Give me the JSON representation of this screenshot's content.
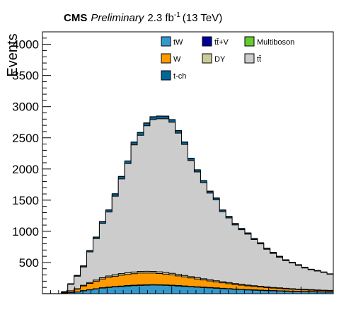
{
  "figure": {
    "title_cms": "CMS",
    "title_prelim": "Preliminary",
    "title_lumi": "2.3 fb",
    "title_lumi_exp": "-1",
    "title_energy": "(13 TeV)"
  },
  "chart_data": {
    "type": "area",
    "stacked": true,
    "title": "CMS Preliminary 2.3 fb-1 (13 TeV)",
    "xlabel": "",
    "ylabel": "Events",
    "ylim": [
      0,
      4200
    ],
    "yticks": [
      500,
      1000,
      1500,
      2000,
      2500,
      3000,
      3500,
      4000
    ],
    "ytick_labels": [
      "500",
      "1000",
      "1500",
      "2000",
      "2500",
      "3000",
      "3500",
      "4000"
    ],
    "grid": false,
    "legend_position": "top-right",
    "legend": [
      {
        "label": "tW",
        "color": "#3399cc"
      },
      {
        "label": "tt̄+V",
        "color": "#000099"
      },
      {
        "label": "Multiboson",
        "color": "#66cc33"
      },
      {
        "label": "W",
        "color": "#ff9900"
      },
      {
        "label": "DY",
        "color": "#cccc99"
      },
      {
        "label": "tt̄",
        "color": "#cccccc"
      },
      {
        "label": "t-ch",
        "color": "#006699"
      }
    ],
    "bins": 46,
    "series": [
      {
        "name": "tW",
        "color": "#3399cc",
        "values": [
          0,
          0,
          0,
          5,
          15,
          25,
          45,
          60,
          75,
          90,
          100,
          108,
          115,
          122,
          128,
          132,
          135,
          137,
          136,
          133,
          128,
          122,
          116,
          110,
          104,
          98,
          92,
          86,
          80,
          75,
          70,
          65,
          60,
          56,
          52,
          48,
          45,
          42,
          39,
          36,
          34,
          31,
          29,
          27,
          25,
          24
        ]
      },
      {
        "name": "tt̄+V",
        "color": "#000099",
        "values": [
          0,
          0,
          0,
          0,
          1,
          1,
          2,
          2,
          3,
          3,
          4,
          4,
          4,
          5,
          5,
          5,
          5,
          5,
          5,
          5,
          5,
          5,
          5,
          4,
          4,
          4,
          4,
          4,
          4,
          3,
          3,
          3,
          3,
          3,
          3,
          3,
          2,
          2,
          2,
          2,
          2,
          2,
          2,
          2,
          2,
          2
        ]
      },
      {
        "name": "Multiboson",
        "color": "#66cc33",
        "values": [
          0,
          0,
          0,
          0,
          1,
          1,
          1,
          2,
          2,
          2,
          3,
          3,
          3,
          3,
          3,
          3,
          3,
          3,
          3,
          3,
          3,
          3,
          3,
          3,
          3,
          3,
          3,
          3,
          3,
          3,
          2,
          2,
          2,
          2,
          2,
          2,
          2,
          2,
          2,
          2,
          2,
          2,
          2,
          2,
          2,
          2
        ]
      },
      {
        "name": "W",
        "color": "#ff9900",
        "values": [
          0,
          0,
          0,
          10,
          25,
          45,
          75,
          100,
          120,
          140,
          155,
          165,
          175,
          180,
          185,
          190,
          188,
          185,
          180,
          172,
          165,
          155,
          145,
          135,
          125,
          115,
          105,
          96,
          88,
          80,
          72,
          66,
          60,
          55,
          50,
          45,
          41,
          37,
          34,
          31,
          28,
          26,
          24,
          22,
          20,
          18
        ]
      },
      {
        "name": "DY",
        "color": "#cccc99",
        "values": [
          0,
          0,
          0,
          2,
          5,
          8,
          12,
          15,
          18,
          20,
          22,
          24,
          25,
          26,
          27,
          28,
          28,
          28,
          27,
          26,
          25,
          24,
          23,
          22,
          21,
          20,
          19,
          18,
          17,
          16,
          15,
          14,
          13,
          12,
          12,
          11,
          10,
          10,
          9,
          9,
          8,
          8,
          8,
          7,
          7,
          7
        ]
      },
      {
        "name": "tt̄",
        "color": "#cccccc",
        "values": [
          0,
          0,
          0,
          12,
          104,
          200,
          292,
          491,
          664,
          873,
          1026,
          1260,
          1518,
          1751,
          2039,
          2182,
          2334,
          2435,
          2454,
          2466,
          2424,
          2266,
          2102,
          1862,
          1696,
          1540,
          1391,
          1299,
          1124,
          1038,
          941,
          876,
          817,
          740,
          680,
          603,
          546,
          492,
          444,
          412,
          380,
          343,
          318,
          303,
          284,
          259
        ]
      },
      {
        "name": "t-ch",
        "color": "#006699",
        "values": [
          0,
          0,
          0,
          2,
          8,
          12,
          18,
          22,
          26,
          30,
          34,
          38,
          40,
          42,
          44,
          45,
          45,
          45,
          44,
          43,
          42,
          40,
          38,
          36,
          34,
          32,
          30,
          28,
          26,
          24,
          22,
          20,
          19,
          18,
          17,
          16,
          15,
          14,
          13,
          12,
          11,
          10,
          9,
          8,
          7,
          6
        ]
      }
    ]
  }
}
